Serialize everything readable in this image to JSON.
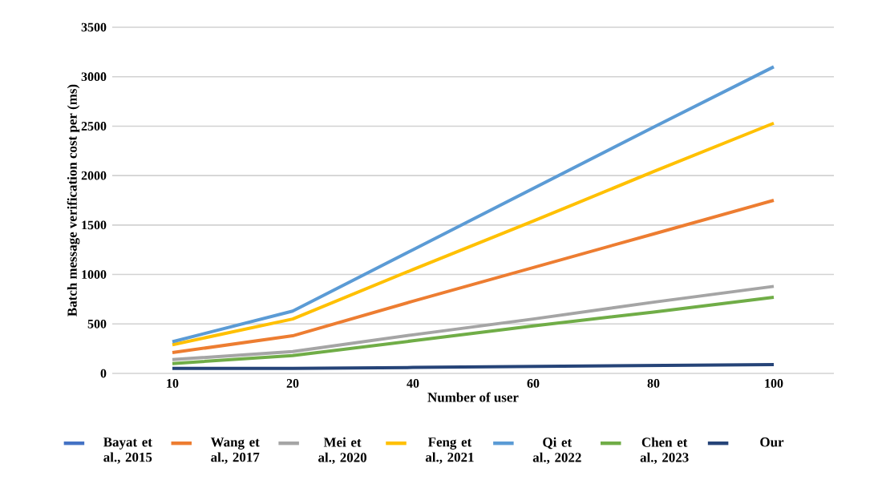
{
  "chart_data": {
    "type": "line",
    "xlabel": "Number of user",
    "ylabel": "Batch message verification cost per (ms)",
    "categories": [
      "10",
      "20",
      "40",
      "60",
      "80",
      "100"
    ],
    "series": [
      {
        "name": "Bayat et al., 2015",
        "color": "#4472c4",
        "values": [
          null,
          null,
          null,
          null,
          null,
          null
        ]
      },
      {
        "name": "Wang et al., 2017",
        "color": "#ed7d31",
        "values": [
          210,
          380,
          730,
          1070,
          1410,
          1750
        ]
      },
      {
        "name": "Mei et al., 2020",
        "color": "#a5a5a5",
        "values": [
          140,
          220,
          390,
          550,
          720,
          880
        ]
      },
      {
        "name": "Feng et al., 2021",
        "color": "#ffc000",
        "values": [
          290,
          550,
          1050,
          1540,
          2040,
          2530
        ]
      },
      {
        "name": "Qi et al., 2022",
        "color": "#5b9bd5",
        "values": [
          320,
          630,
          1250,
          1870,
          2490,
          3100
        ]
      },
      {
        "name": "Chen et al., 2023",
        "color": "#70ad47",
        "values": [
          100,
          180,
          330,
          480,
          620,
          770
        ]
      },
      {
        "name": "Our",
        "color": "#264478",
        "values": [
          50,
          50,
          60,
          70,
          80,
          90
        ]
      }
    ],
    "ylim": [
      0,
      3500
    ],
    "yticks": [
      0,
      500,
      1000,
      1500,
      2000,
      2500,
      3000,
      3500
    ],
    "grid": "y",
    "legend": "bottom",
    "marker": "none",
    "line_style": "solid"
  }
}
